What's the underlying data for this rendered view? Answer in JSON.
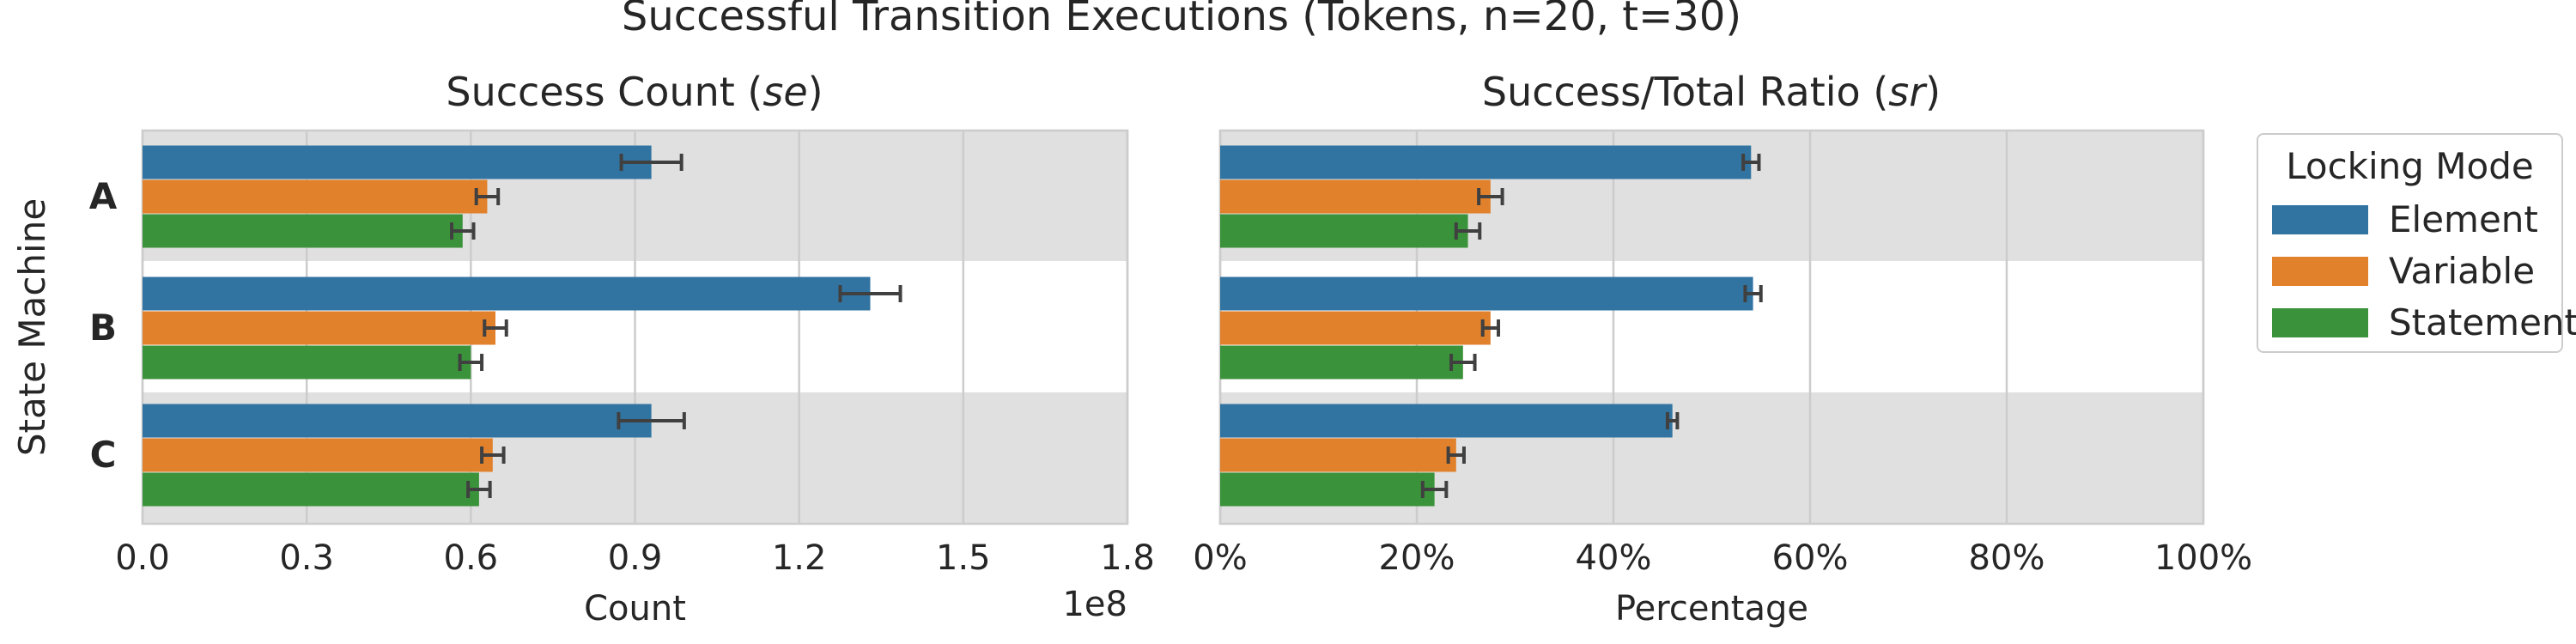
{
  "figure_title": "Successful Transition Executions (Tokens, n=20, t=30)",
  "y_axis_label": "State Machine",
  "legend": {
    "title": "Locking Mode",
    "entries": [
      "Element",
      "Variable",
      "Statement"
    ]
  },
  "colors": {
    "Element": "#3274a1",
    "Variable": "#e1812c",
    "Statement": "#3a923a",
    "band": "#e0e0e0",
    "grid": "#cccccc",
    "errorbar": "#404040"
  },
  "chart_data": [
    {
      "type": "bar",
      "orientation": "horizontal",
      "title_main": "Success Count (",
      "title_em": "se",
      "title_end": ")",
      "xlabel": "Count",
      "offset_label": "1e8",
      "xlim": [
        0,
        1.8
      ],
      "xticks": [
        0.0,
        0.3,
        0.6,
        0.9,
        1.2,
        1.5,
        1.8
      ],
      "xtick_labels": [
        "0.0",
        "0.3",
        "0.6",
        "0.9",
        "1.2",
        "1.5",
        "1.8"
      ],
      "categories": [
        "A",
        "B",
        "C"
      ],
      "series": [
        {
          "name": "Element",
          "values": [
            0.93,
            1.33,
            0.93
          ],
          "error": [
            0.055,
            0.055,
            0.06
          ]
        },
        {
          "name": "Variable",
          "values": [
            0.63,
            0.645,
            0.64
          ],
          "error": [
            0.02,
            0.02,
            0.02
          ]
        },
        {
          "name": "Statement",
          "values": [
            0.585,
            0.6,
            0.615
          ],
          "error": [
            0.02,
            0.02,
            0.02
          ]
        }
      ]
    },
    {
      "type": "bar",
      "orientation": "horizontal",
      "title_main": "Success/Total Ratio (",
      "title_em": "sr",
      "title_end": ")",
      "xlabel": "Percentage",
      "xlim": [
        0,
        100
      ],
      "xticks": [
        0,
        20,
        40,
        60,
        80,
        100
      ],
      "xtick_labels": [
        "0%",
        "20%",
        "40%",
        "60%",
        "80%",
        "100%"
      ],
      "categories": [
        "A",
        "B",
        "C"
      ],
      "series": [
        {
          "name": "Element",
          "values": [
            54.0,
            54.2,
            46.0
          ],
          "error": [
            0.8,
            0.8,
            0.5
          ]
        },
        {
          "name": "Variable",
          "values": [
            27.5,
            27.5,
            24.0
          ],
          "error": [
            1.2,
            0.8,
            0.8
          ]
        },
        {
          "name": "Statement",
          "values": [
            25.2,
            24.7,
            21.8
          ],
          "error": [
            1.2,
            1.2,
            1.2
          ]
        }
      ]
    }
  ]
}
